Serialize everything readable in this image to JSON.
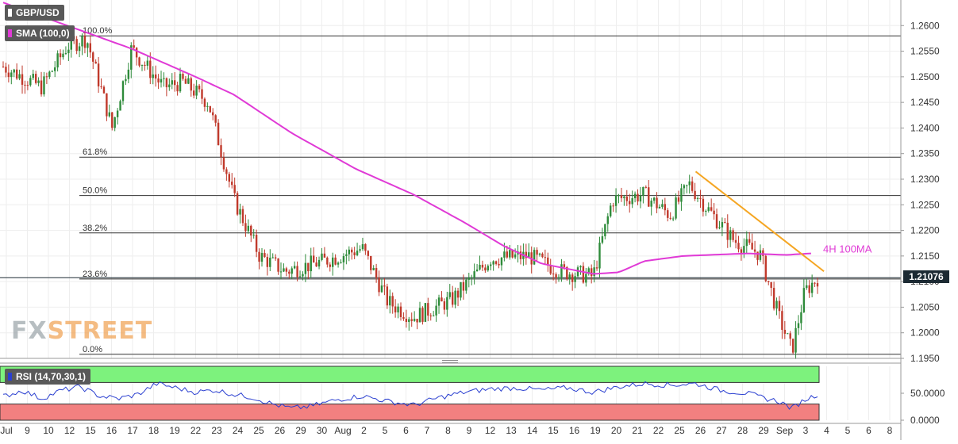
{
  "title": "GBP/USD",
  "indicator_label": "SMA (100,0)",
  "rsi_label": "RSI (14,70,30,1)",
  "current_price": "1.21076",
  "logo": {
    "text_a": "FX",
    "text_b": "STREET"
  },
  "annotations": {
    "ma_label": "4H 100MA"
  },
  "colors": {
    "up": "#2e8b3a",
    "down": "#c0392b",
    "sma": "#e03ad6",
    "trendline": "#f5a623",
    "rsi_line": "#2a3fd0",
    "rsi_overbought": "#7df27d",
    "rsi_oversold": "#f28080"
  },
  "chart_data": {
    "type": "candlestick",
    "title": "GBP/USD",
    "ylim": [
      1.195,
      1.265
    ],
    "y_ticks": [
      "1.2600",
      "1.2550",
      "1.2500",
      "1.2450",
      "1.2400",
      "1.2350",
      "1.2300",
      "1.2250",
      "1.2200",
      "1.2150",
      "1.2100",
      "1.2050",
      "1.2000",
      "1.1950"
    ],
    "x_ticks": [
      "Jul",
      "9",
      "10",
      "12",
      "15",
      "16",
      "17",
      "18",
      "19",
      "22",
      "23",
      "24",
      "25",
      "26",
      "29",
      "30",
      "Aug",
      "2",
      "5",
      "6",
      "7",
      "8",
      "9",
      "12",
      "13",
      "14",
      "15",
      "16",
      "19",
      "20",
      "21",
      "22",
      "25",
      "26",
      "27",
      "28",
      "29",
      "Sep",
      "3",
      "4",
      "5",
      "6",
      "8"
    ],
    "fib_levels": [
      {
        "label": "100.0%",
        "value": 1.258
      },
      {
        "label": "61.8%",
        "value": 1.2343
      },
      {
        "label": "50.0%",
        "value": 1.2268
      },
      {
        "label": "38.2%",
        "value": 1.2195
      },
      {
        "label": "23.6%",
        "value": 1.2105
      },
      {
        "label": "0.0%",
        "value": 1.1958
      }
    ],
    "last_price": 1.21076,
    "close_path": [
      [
        0,
        1.252
      ],
      [
        6,
        1.248
      ],
      [
        10,
        1.256
      ],
      [
        13,
        1.2575
      ],
      [
        17,
        1.24
      ],
      [
        20,
        1.2555
      ],
      [
        25,
        1.248
      ],
      [
        28,
        1.249
      ],
      [
        32,
        1.245
      ],
      [
        36,
        1.226
      ],
      [
        40,
        1.215
      ],
      [
        44,
        1.212
      ],
      [
        50,
        1.214
      ],
      [
        56,
        1.2165
      ],
      [
        60,
        1.206
      ],
      [
        64,
        1.203
      ],
      [
        70,
        1.2065
      ],
      [
        76,
        1.2145
      ],
      [
        82,
        1.215
      ],
      [
        87,
        1.212
      ],
      [
        92,
        1.211
      ],
      [
        95,
        1.226
      ],
      [
        100,
        1.227
      ],
      [
        104,
        1.223
      ],
      [
        107,
        1.229
      ],
      [
        110,
        1.224
      ],
      [
        114,
        1.218
      ],
      [
        118,
        1.2155
      ],
      [
        121,
        1.203
      ],
      [
        123,
        1.1965
      ],
      [
        125,
        1.208
      ],
      [
        127,
        1.21076
      ]
    ],
    "sma_100": [
      [
        0,
        1.2645
      ],
      [
        10,
        1.26
      ],
      [
        20,
        1.2555
      ],
      [
        30,
        1.25
      ],
      [
        36,
        1.2465
      ],
      [
        45,
        1.239
      ],
      [
        55,
        1.232
      ],
      [
        64,
        1.227
      ],
      [
        72,
        1.2215
      ],
      [
        78,
        1.217
      ],
      [
        84,
        1.2135
      ],
      [
        92,
        1.2115
      ],
      [
        96,
        1.2118
      ],
      [
        100,
        1.214
      ],
      [
        106,
        1.215
      ],
      [
        112,
        1.2153
      ],
      [
        116,
        1.2155
      ],
      [
        122,
        1.2152
      ],
      [
        126,
        1.2155
      ]
    ],
    "trendline": [
      [
        108,
        1.2315
      ],
      [
        128,
        1.212
      ]
    ],
    "rsi": {
      "ylim": [
        0,
        100
      ],
      "y_ticks": [
        "50.0000",
        "0.0000"
      ],
      "overbought": 70,
      "oversold": 30,
      "values": [
        [
          0,
          44
        ],
        [
          3,
          55
        ],
        [
          6,
          40
        ],
        [
          9,
          55
        ],
        [
          12,
          62
        ],
        [
          15,
          45
        ],
        [
          18,
          40
        ],
        [
          21,
          48
        ],
        [
          24,
          68
        ],
        [
          27,
          60
        ],
        [
          30,
          52
        ],
        [
          33,
          56
        ],
        [
          36,
          48
        ],
        [
          39,
          42
        ],
        [
          42,
          30
        ],
        [
          45,
          22
        ],
        [
          48,
          26
        ],
        [
          52,
          38
        ],
        [
          56,
          45
        ],
        [
          60,
          35
        ],
        [
          64,
          28
        ],
        [
          68,
          42
        ],
        [
          72,
          52
        ],
        [
          76,
          58
        ],
        [
          80,
          60
        ],
        [
          84,
          56
        ],
        [
          88,
          60
        ],
        [
          92,
          52
        ],
        [
          96,
          62
        ],
        [
          100,
          68
        ],
        [
          104,
          65
        ],
        [
          108,
          68
        ],
        [
          112,
          55
        ],
        [
          116,
          50
        ],
        [
          119,
          40
        ],
        [
          121,
          35
        ],
        [
          123,
          22
        ],
        [
          125,
          38
        ],
        [
          127,
          48
        ]
      ]
    }
  }
}
